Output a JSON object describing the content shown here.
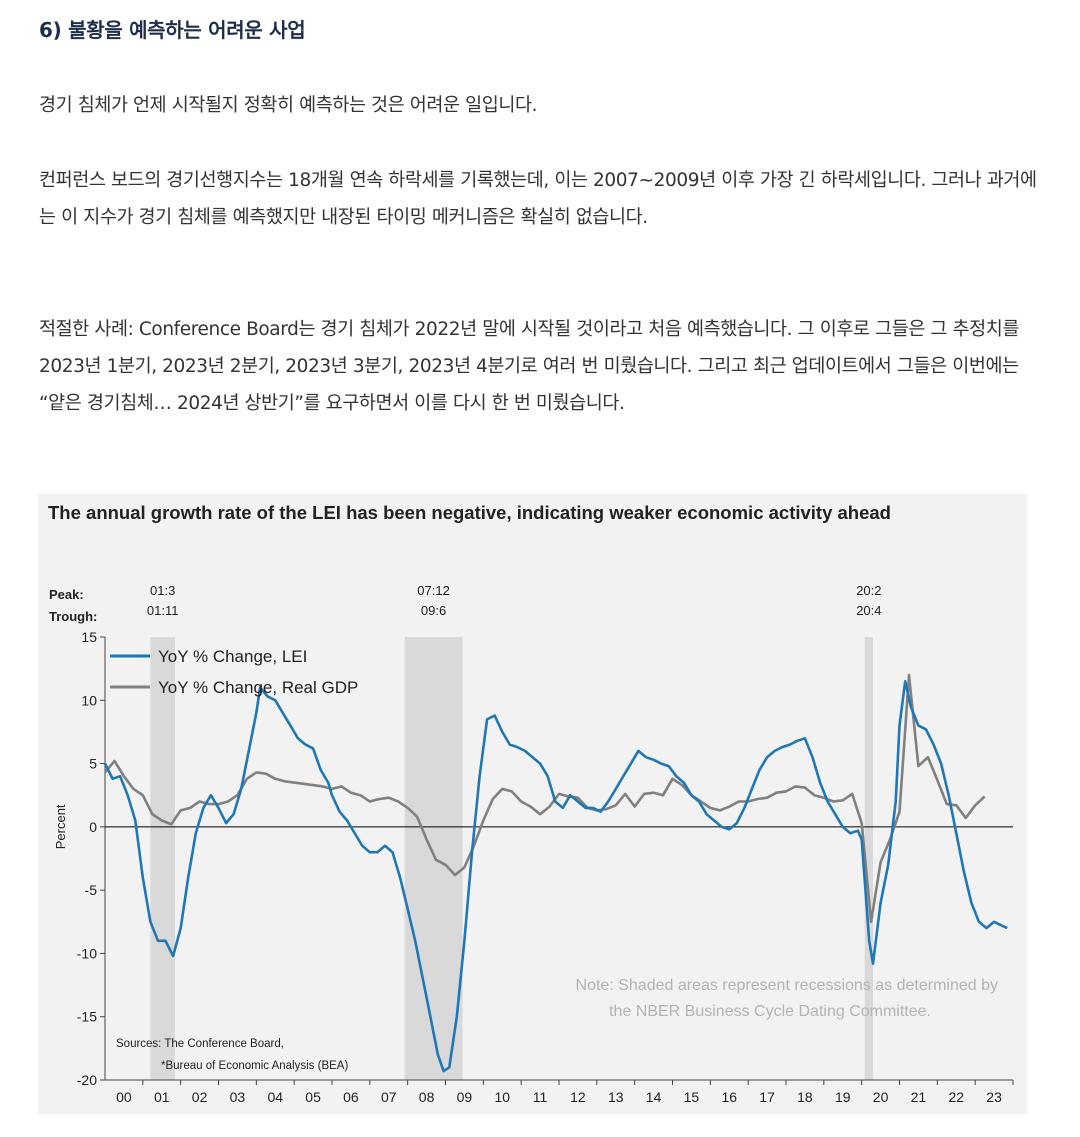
{
  "article": {
    "heading": "6) 불황을 예측하는 어려운 사업",
    "paragraphs": [
      "경기 침체가 언제 시작될지 정확히 예측하는 것은 어려운 일입니다.",
      "컨퍼런스 보드의 경기선행지수는 18개월 연속 하락세를 기록했는데, 이는 2007~2009년 이후 가장 긴 하락세입니다. 그러나 과거에는 이 지수가 경기 침체를 예측했지만 내장된 타이밍 메커니즘은 확실히 없습니다.",
      "적절한 사례: Conference Board는 경기 침체가 2022년 말에 시작될 것이라고 처음 예측했습니다. 그 이후로 그들은 그 추정치를 2023년 1분기, 2023년 2분기, 2023년 3분기, 2023년 4분기로 여러 번 미뤘습니다. 그리고 최근 업데이트에서 그들은 이번에는 “얕은 경기침체… 2024년 상반기”를 요구하면서 이를 다시 한 번 미뤘습니다."
    ]
  },
  "chart_data": {
    "type": "line",
    "title": "The annual growth rate of the LEI has been negative, indicating weaker economic activity ahead",
    "ylabel": "Percent",
    "ylim": [
      -20,
      15
    ],
    "yticks": [
      15,
      10,
      5,
      0,
      -5,
      -10,
      -15,
      -20
    ],
    "xlim": [
      2000,
      2024
    ],
    "x_tick_labels": [
      "00",
      "01",
      "02",
      "03",
      "04",
      "05",
      "06",
      "07",
      "08",
      "09",
      "10",
      "11",
      "12",
      "13",
      "14",
      "15",
      "16",
      "17",
      "18",
      "19",
      "20",
      "21",
      "22",
      "23"
    ],
    "peak_label": "Peak:",
    "trough_label": "Trough:",
    "recessions": [
      {
        "start": 2001.2,
        "end": 2001.85,
        "peak": "01:3",
        "trough": "01:11"
      },
      {
        "start": 2007.92,
        "end": 2009.45,
        "peak": "07:12",
        "trough": "09:6"
      },
      {
        "start": 2020.08,
        "end": 2020.3,
        "peak": "20:2",
        "trough": "20:4"
      }
    ],
    "series": [
      {
        "name": "YoY % Change, LEI",
        "color": "#1f77b4",
        "points": [
          [
            2000.0,
            5.0
          ],
          [
            2000.2,
            3.8
          ],
          [
            2000.4,
            4.0
          ],
          [
            2000.6,
            2.5
          ],
          [
            2000.8,
            0.5
          ],
          [
            2001.0,
            -4.0
          ],
          [
            2001.2,
            -7.5
          ],
          [
            2001.4,
            -9.0
          ],
          [
            2001.6,
            -9.0
          ],
          [
            2001.8,
            -10.2
          ],
          [
            2002.0,
            -8.0
          ],
          [
            2002.2,
            -4.0
          ],
          [
            2002.4,
            -0.5
          ],
          [
            2002.6,
            1.5
          ],
          [
            2002.8,
            2.5
          ],
          [
            2003.0,
            1.5
          ],
          [
            2003.2,
            0.3
          ],
          [
            2003.4,
            1.0
          ],
          [
            2003.6,
            3.0
          ],
          [
            2003.8,
            6.0
          ],
          [
            2004.0,
            9.0
          ],
          [
            2004.1,
            11.0
          ],
          [
            2004.3,
            10.3
          ],
          [
            2004.5,
            10.0
          ],
          [
            2004.7,
            9.0
          ],
          [
            2004.9,
            8.0
          ],
          [
            2005.1,
            7.0
          ],
          [
            2005.3,
            6.5
          ],
          [
            2005.5,
            6.2
          ],
          [
            2005.7,
            4.5
          ],
          [
            2005.9,
            3.5
          ],
          [
            2006.0,
            2.5
          ],
          [
            2006.2,
            1.2
          ],
          [
            2006.4,
            0.5
          ],
          [
            2006.6,
            -0.5
          ],
          [
            2006.8,
            -1.5
          ],
          [
            2007.0,
            -2.0
          ],
          [
            2007.2,
            -2.0
          ],
          [
            2007.4,
            -1.5
          ],
          [
            2007.6,
            -2.0
          ],
          [
            2007.8,
            -4.0
          ],
          [
            2008.0,
            -6.5
          ],
          [
            2008.2,
            -9.0
          ],
          [
            2008.4,
            -12.0
          ],
          [
            2008.6,
            -15.0
          ],
          [
            2008.8,
            -18.0
          ],
          [
            2008.95,
            -19.3
          ],
          [
            2009.1,
            -19.0
          ],
          [
            2009.3,
            -15.0
          ],
          [
            2009.5,
            -9.0
          ],
          [
            2009.7,
            -2.0
          ],
          [
            2009.9,
            4.0
          ],
          [
            2010.1,
            8.5
          ],
          [
            2010.3,
            8.8
          ],
          [
            2010.5,
            7.5
          ],
          [
            2010.7,
            6.5
          ],
          [
            2010.9,
            6.3
          ],
          [
            2011.1,
            6.0
          ],
          [
            2011.3,
            5.5
          ],
          [
            2011.5,
            5.0
          ],
          [
            2011.7,
            4.0
          ],
          [
            2011.9,
            2.0
          ],
          [
            2012.1,
            1.5
          ],
          [
            2012.3,
            2.5
          ],
          [
            2012.5,
            2.0
          ],
          [
            2012.7,
            1.5
          ],
          [
            2012.9,
            1.5
          ],
          [
            2013.1,
            1.2
          ],
          [
            2013.3,
            2.0
          ],
          [
            2013.5,
            3.0
          ],
          [
            2013.7,
            4.0
          ],
          [
            2013.9,
            5.0
          ],
          [
            2014.1,
            6.0
          ],
          [
            2014.3,
            5.5
          ],
          [
            2014.5,
            5.3
          ],
          [
            2014.7,
            5.0
          ],
          [
            2014.9,
            4.8
          ],
          [
            2015.1,
            4.0
          ],
          [
            2015.3,
            3.5
          ],
          [
            2015.5,
            2.5
          ],
          [
            2015.7,
            2.0
          ],
          [
            2015.9,
            1.0
          ],
          [
            2016.1,
            0.5
          ],
          [
            2016.3,
            0.0
          ],
          [
            2016.5,
            -0.2
          ],
          [
            2016.7,
            0.3
          ],
          [
            2016.9,
            1.5
          ],
          [
            2017.1,
            3.0
          ],
          [
            2017.3,
            4.5
          ],
          [
            2017.5,
            5.5
          ],
          [
            2017.7,
            6.0
          ],
          [
            2017.9,
            6.3
          ],
          [
            2018.1,
            6.5
          ],
          [
            2018.3,
            6.8
          ],
          [
            2018.5,
            7.0
          ],
          [
            2018.7,
            5.5
          ],
          [
            2018.9,
            3.5
          ],
          [
            2019.1,
            2.0
          ],
          [
            2019.3,
            1.0
          ],
          [
            2019.5,
            0.0
          ],
          [
            2019.7,
            -0.5
          ],
          [
            2019.9,
            -0.3
          ],
          [
            2020.0,
            -1.0
          ],
          [
            2020.2,
            -9.0
          ],
          [
            2020.3,
            -10.8
          ],
          [
            2020.5,
            -6.0
          ],
          [
            2020.7,
            -3.0
          ],
          [
            2020.9,
            2.0
          ],
          [
            2021.0,
            8.0
          ],
          [
            2021.15,
            11.5
          ],
          [
            2021.3,
            9.5
          ],
          [
            2021.5,
            8.0
          ],
          [
            2021.7,
            7.7
          ],
          [
            2021.9,
            6.5
          ],
          [
            2022.1,
            5.0
          ],
          [
            2022.3,
            2.5
          ],
          [
            2022.5,
            -0.5
          ],
          [
            2022.7,
            -3.5
          ],
          [
            2022.9,
            -6.0
          ],
          [
            2023.1,
            -7.5
          ],
          [
            2023.3,
            -8.0
          ],
          [
            2023.5,
            -7.5
          ],
          [
            2023.7,
            -7.8
          ],
          [
            2023.85,
            -8.0
          ]
        ]
      },
      {
        "name": "YoY % Change, Real GDP",
        "color": "#808080",
        "points": [
          [
            2000.0,
            4.3
          ],
          [
            2000.25,
            5.2
          ],
          [
            2000.5,
            4.0
          ],
          [
            2000.75,
            3.0
          ],
          [
            2001.0,
            2.5
          ],
          [
            2001.25,
            1.0
          ],
          [
            2001.5,
            0.5
          ],
          [
            2001.75,
            0.2
          ],
          [
            2002.0,
            1.3
          ],
          [
            2002.25,
            1.5
          ],
          [
            2002.5,
            2.0
          ],
          [
            2002.75,
            1.8
          ],
          [
            2003.0,
            1.8
          ],
          [
            2003.25,
            2.0
          ],
          [
            2003.5,
            2.5
          ],
          [
            2003.75,
            3.8
          ],
          [
            2004.0,
            4.3
          ],
          [
            2004.25,
            4.2
          ],
          [
            2004.5,
            3.8
          ],
          [
            2004.75,
            3.6
          ],
          [
            2005.0,
            3.5
          ],
          [
            2005.25,
            3.4
          ],
          [
            2005.5,
            3.3
          ],
          [
            2005.75,
            3.2
          ],
          [
            2006.0,
            3.0
          ],
          [
            2006.25,
            3.2
          ],
          [
            2006.5,
            2.7
          ],
          [
            2006.75,
            2.5
          ],
          [
            2007.0,
            2.0
          ],
          [
            2007.25,
            2.2
          ],
          [
            2007.5,
            2.3
          ],
          [
            2007.75,
            2.0
          ],
          [
            2008.0,
            1.5
          ],
          [
            2008.25,
            0.8
          ],
          [
            2008.5,
            -1.0
          ],
          [
            2008.75,
            -2.6
          ],
          [
            2009.0,
            -3.0
          ],
          [
            2009.25,
            -3.8
          ],
          [
            2009.5,
            -3.2
          ],
          [
            2009.75,
            -1.5
          ],
          [
            2010.0,
            0.5
          ],
          [
            2010.25,
            2.2
          ],
          [
            2010.5,
            3.0
          ],
          [
            2010.75,
            2.8
          ],
          [
            2011.0,
            2.0
          ],
          [
            2011.25,
            1.6
          ],
          [
            2011.5,
            1.0
          ],
          [
            2011.75,
            1.6
          ],
          [
            2012.0,
            2.6
          ],
          [
            2012.25,
            2.4
          ],
          [
            2012.5,
            2.3
          ],
          [
            2012.75,
            1.5
          ],
          [
            2013.0,
            1.3
          ],
          [
            2013.25,
            1.4
          ],
          [
            2013.5,
            1.7
          ],
          [
            2013.75,
            2.6
          ],
          [
            2014.0,
            1.6
          ],
          [
            2014.25,
            2.6
          ],
          [
            2014.5,
            2.7
          ],
          [
            2014.75,
            2.5
          ],
          [
            2015.0,
            3.8
          ],
          [
            2015.25,
            3.3
          ],
          [
            2015.5,
            2.5
          ],
          [
            2015.75,
            2.0
          ],
          [
            2016.0,
            1.5
          ],
          [
            2016.25,
            1.3
          ],
          [
            2016.5,
            1.6
          ],
          [
            2016.75,
            2.0
          ],
          [
            2017.0,
            2.0
          ],
          [
            2017.25,
            2.2
          ],
          [
            2017.5,
            2.3
          ],
          [
            2017.75,
            2.7
          ],
          [
            2018.0,
            2.8
          ],
          [
            2018.25,
            3.2
          ],
          [
            2018.5,
            3.1
          ],
          [
            2018.75,
            2.5
          ],
          [
            2019.0,
            2.3
          ],
          [
            2019.25,
            2.0
          ],
          [
            2019.5,
            2.1
          ],
          [
            2019.75,
            2.6
          ],
          [
            2020.0,
            0.3
          ],
          [
            2020.25,
            -7.5
          ],
          [
            2020.5,
            -2.8
          ],
          [
            2020.75,
            -1.0
          ],
          [
            2021.0,
            1.2
          ],
          [
            2021.25,
            12.0
          ],
          [
            2021.5,
            4.8
          ],
          [
            2021.75,
            5.5
          ],
          [
            2022.0,
            3.7
          ],
          [
            2022.25,
            1.8
          ],
          [
            2022.5,
            1.7
          ],
          [
            2022.75,
            0.7
          ],
          [
            2023.0,
            1.7
          ],
          [
            2023.25,
            2.4
          ]
        ]
      }
    ],
    "notes": {
      "note_line1": "Note: Shaded areas represent recessions as determined by",
      "note_line2": "the NBER Business Cycle Dating Committee.",
      "sources_line1": "Sources: The Conference Board,",
      "sources_line2": "*Bureau of Economic Analysis (BEA)"
    },
    "colors": {
      "recession_shade": "#d9d9d9",
      "background": "#f2f2f2",
      "zero_line": "#000000"
    }
  }
}
